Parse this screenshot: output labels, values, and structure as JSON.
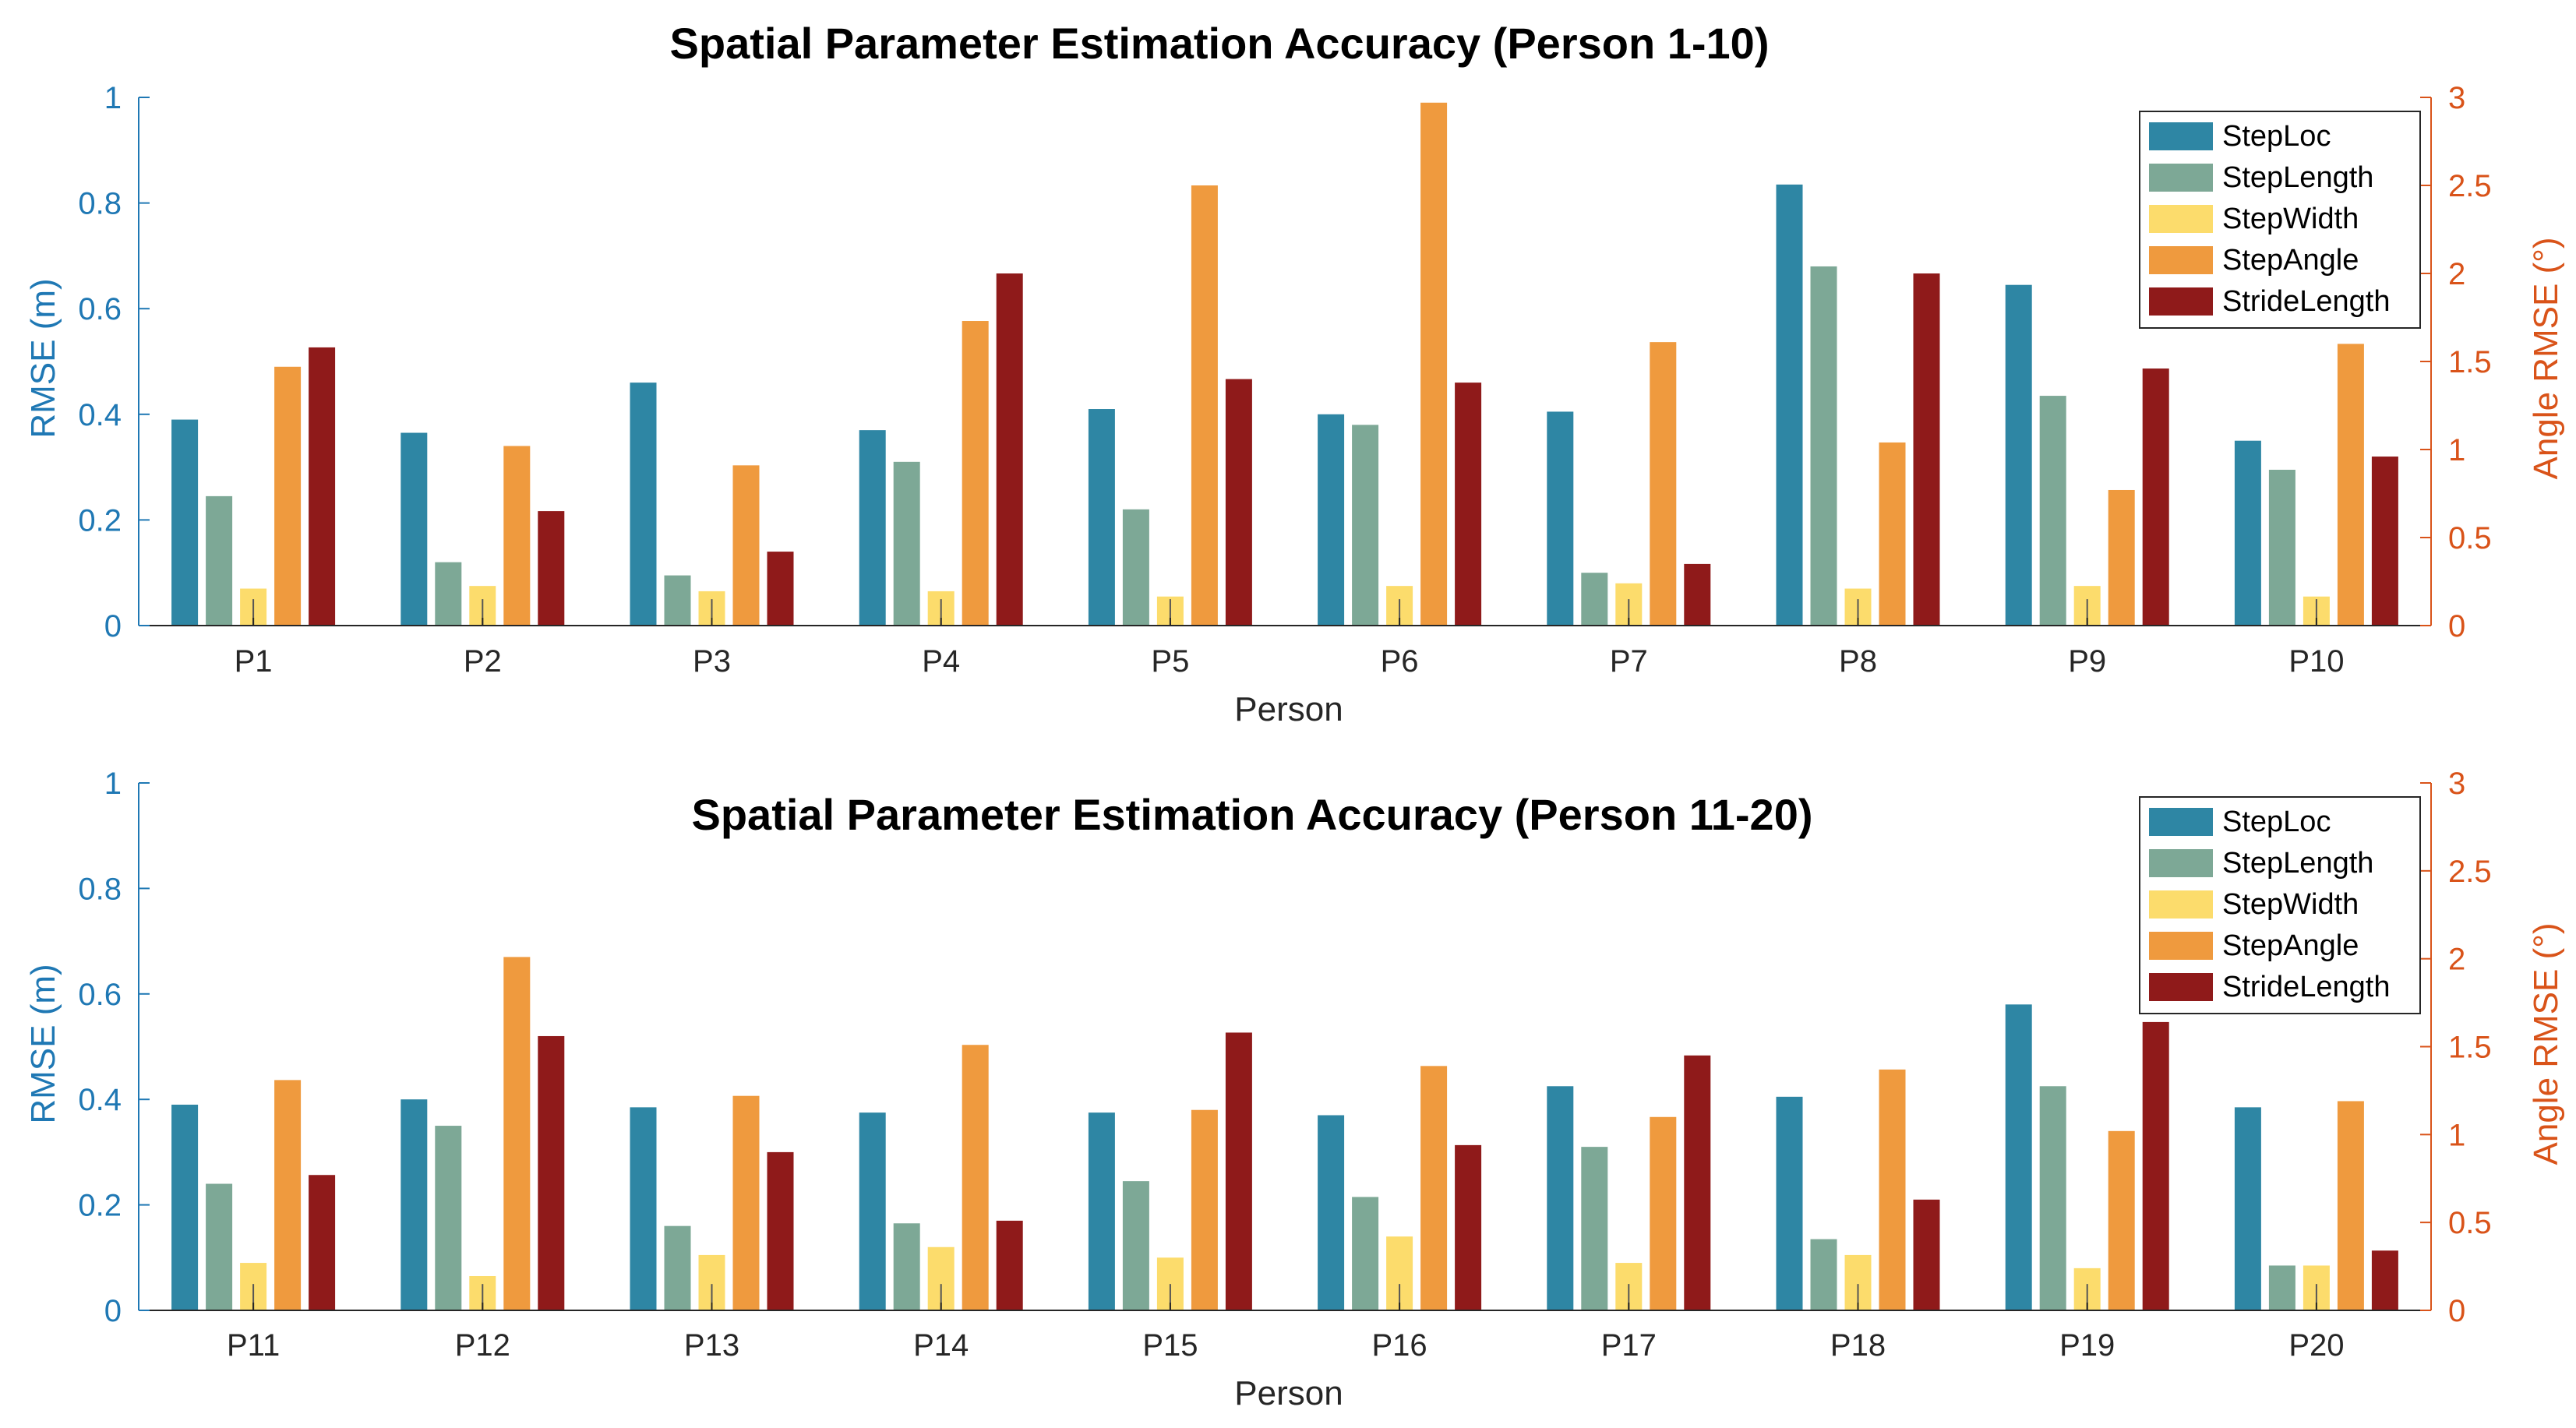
{
  "colors": {
    "StepLoc": "#2e86a4",
    "StepLength": "#7da896",
    "StepWidth": "#fcdc6c",
    "StepAngle": "#ef9a3e",
    "StrideLength": "#8f1a1a",
    "left_axis": "#1f78b4",
    "right_axis": "#d95319",
    "x_axis": "#262626"
  },
  "chart_data": [
    {
      "type": "bar",
      "title": "Spatial Parameter Estimation Accuracy (Person 1-10)",
      "xlabel": "Person",
      "ylabel": "RMSE (m)",
      "ylabel_right": "Angle RMSE (°)",
      "ylim": [
        0,
        1
      ],
      "ylim_right": [
        0,
        3
      ],
      "yticks": [
        "0",
        "0.2",
        "0.4",
        "0.6",
        "0.8",
        "1"
      ],
      "yticks_right": [
        "0",
        "0.5",
        "1",
        "1.5",
        "2",
        "2.5",
        "3"
      ],
      "legend_position": "top-right",
      "grid": false,
      "categories": [
        "P1",
        "P2",
        "P3",
        "P4",
        "P5",
        "P6",
        "P7",
        "P8",
        "P9",
        "P10"
      ],
      "series": [
        {
          "name": "StepLoc",
          "axis": "left",
          "values": [
            0.39,
            0.365,
            0.46,
            0.37,
            0.41,
            0.4,
            0.405,
            0.835,
            0.645,
            0.35
          ]
        },
        {
          "name": "StepLength",
          "axis": "left",
          "values": [
            0.245,
            0.12,
            0.095,
            0.31,
            0.22,
            0.38,
            0.1,
            0.68,
            0.435,
            0.295
          ]
        },
        {
          "name": "StepWidth",
          "axis": "left",
          "values": [
            0.07,
            0.075,
            0.065,
            0.065,
            0.055,
            0.075,
            0.08,
            0.07,
            0.075,
            0.055
          ]
        },
        {
          "name": "StepAngle",
          "axis": "right",
          "values": [
            1.47,
            1.02,
            0.91,
            1.73,
            2.5,
            2.97,
            1.61,
            1.04,
            0.77,
            1.6
          ]
        },
        {
          "name": "StrideLength",
          "axis": "right",
          "values": [
            1.58,
            0.65,
            0.42,
            2.0,
            1.4,
            1.38,
            0.35,
            2.0,
            1.46,
            0.96
          ]
        }
      ]
    },
    {
      "type": "bar",
      "title": "Spatial Parameter Estimation Accuracy (Person 11-20)",
      "xlabel": "Person",
      "ylabel": "RMSE (m)",
      "ylabel_right": "Angle RMSE (°)",
      "ylim": [
        0,
        1
      ],
      "ylim_right": [
        0,
        3
      ],
      "yticks": [
        "0",
        "0.2",
        "0.4",
        "0.6",
        "0.8",
        "1"
      ],
      "yticks_right": [
        "0",
        "0.5",
        "1",
        "1.5",
        "2",
        "2.5",
        "3"
      ],
      "legend_position": "top-right",
      "grid": false,
      "categories": [
        "P11",
        "P12",
        "P13",
        "P14",
        "P15",
        "P16",
        "P17",
        "P18",
        "P19",
        "P20"
      ],
      "series": [
        {
          "name": "StepLoc",
          "axis": "left",
          "values": [
            0.39,
            0.4,
            0.385,
            0.375,
            0.375,
            0.37,
            0.425,
            0.405,
            0.58,
            0.385
          ]
        },
        {
          "name": "StepLength",
          "axis": "left",
          "values": [
            0.24,
            0.35,
            0.16,
            0.165,
            0.245,
            0.215,
            0.31,
            0.135,
            0.425,
            0.085
          ]
        },
        {
          "name": "StepWidth",
          "axis": "left",
          "values": [
            0.09,
            0.065,
            0.105,
            0.12,
            0.1,
            0.14,
            0.09,
            0.105,
            0.08,
            0.085
          ]
        },
        {
          "name": "StepAngle",
          "axis": "right",
          "values": [
            1.31,
            2.01,
            1.22,
            1.51,
            1.14,
            1.39,
            1.1,
            1.37,
            1.02,
            1.19
          ]
        },
        {
          "name": "StrideLength",
          "axis": "right",
          "values": [
            0.77,
            1.56,
            0.9,
            0.51,
            1.58,
            0.94,
            1.45,
            0.63,
            1.64,
            0.34
          ]
        }
      ]
    }
  ]
}
